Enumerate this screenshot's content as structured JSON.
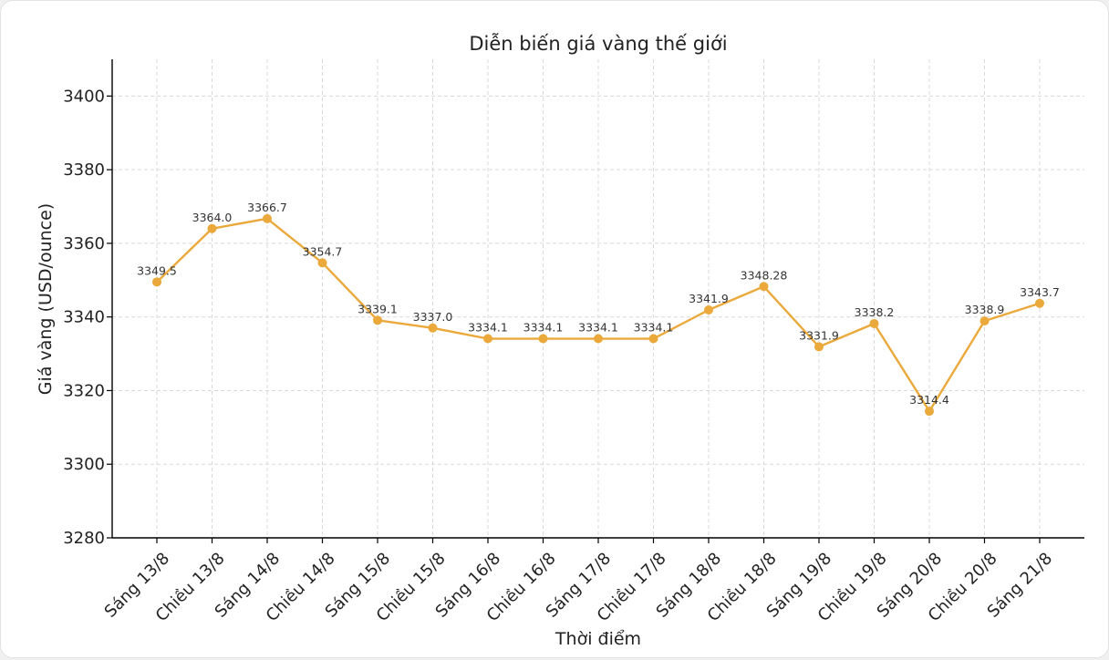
{
  "chart_data": {
    "type": "line",
    "title": "Diễn biến giá vàng thế giới",
    "xlabel": "Thời điểm",
    "ylabel": "Giá vàng (USD/ounce)",
    "ylim": [
      3280,
      3410
    ],
    "yticks": [
      3280,
      3300,
      3320,
      3340,
      3360,
      3380,
      3400
    ],
    "grid": true,
    "categories": [
      "Sáng 13/8",
      "Chiều 13/8",
      "Sáng 14/8",
      "Chiều 14/8",
      "Sáng 15/8",
      "Chiều 15/8",
      "Sáng 16/8",
      "Chiều 16/8",
      "Sáng 17/8",
      "Chiều 17/8",
      "Sáng 18/8",
      "Chiều 18/8",
      "Sáng 19/8",
      "Chiều 19/8",
      "Sáng 20/8",
      "Chiều 20/8",
      "Sáng 21/8"
    ],
    "values": [
      3349.5,
      3364.0,
      3366.7,
      3354.7,
      3339.1,
      3337.0,
      3334.1,
      3334.1,
      3334.1,
      3334.1,
      3341.9,
      3348.28,
      3331.9,
      3338.2,
      3314.4,
      3338.9,
      3343.7
    ],
    "value_labels": [
      "3349.5",
      "3364.0",
      "3366.7",
      "3354.7",
      "3339.1",
      "3337.0",
      "3334.1",
      "3334.1",
      "3334.1",
      "3334.1",
      "3341.9",
      "3348.28",
      "3331.9",
      "3338.2",
      "3314.4",
      "3338.9",
      "3343.7"
    ],
    "line_color": "#EBA93C"
  }
}
